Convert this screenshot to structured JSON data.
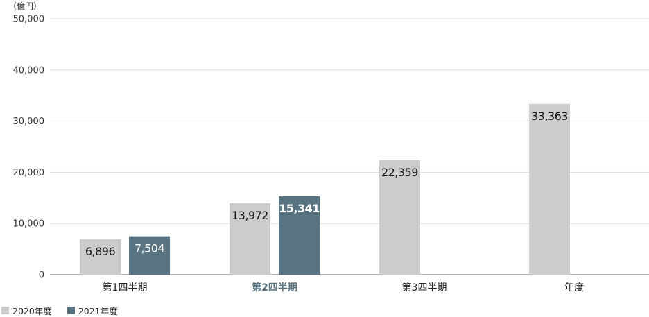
{
  "chart_data": {
    "type": "bar",
    "unit_label": "（億円）",
    "categories": [
      "第1四半期",
      "第2四半期",
      "第3四半期",
      "年度"
    ],
    "highlight_category": "第2四半期",
    "ylim": [
      0,
      50000
    ],
    "yticks": [
      0,
      10000,
      20000,
      30000,
      40000,
      50000
    ],
    "ytick_labels": [
      "0",
      "10,000",
      "20,000",
      "30,000",
      "40,000",
      "50,000"
    ],
    "grid": true,
    "legend_position": "bottom-left",
    "series": [
      {
        "name": "2020年度",
        "color": "#cccccc",
        "values": [
          6896,
          13972,
          22359,
          33363
        ],
        "labels": [
          "6,896",
          "13,972",
          "22,359",
          "33,363"
        ]
      },
      {
        "name": "2021年度",
        "color": "#587482",
        "values": [
          7504,
          15341,
          null,
          null
        ],
        "labels": [
          "7,504",
          "15,341",
          "",
          ""
        ]
      }
    ]
  }
}
